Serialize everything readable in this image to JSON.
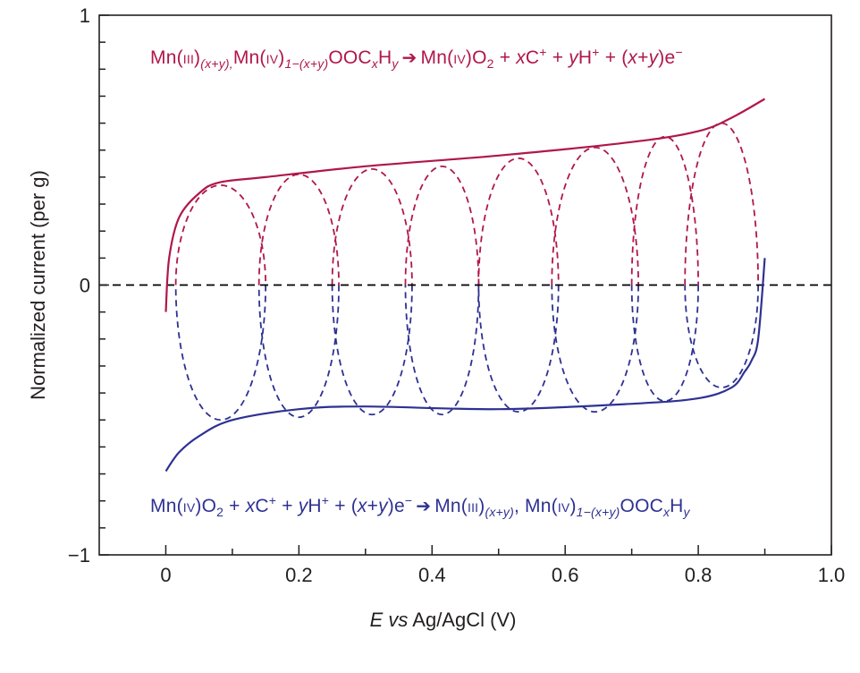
{
  "chart_data": {
    "type": "line",
    "xlabel_italic": "E",
    "xlabel_vs": "vs",
    "xlabel_rest": "Ag/AgCl (V)",
    "ylabel": "Normalized current (per g)",
    "xlim": [
      -0.1,
      1.0
    ],
    "ylim": [
      -1,
      1
    ],
    "x_ticks": [
      "0",
      "0.2",
      "0.4",
      "0.6",
      "0.8",
      "1.0"
    ],
    "x_tick_values": [
      0,
      0.2,
      0.4,
      0.6,
      0.8,
      1.0
    ],
    "y_ticks": [
      "1",
      "0",
      "−1"
    ],
    "y_tick_values": [
      1,
      0,
      -1
    ],
    "zero_line": true,
    "colors": {
      "anodic": "#b0174a",
      "cathodic": "#2e3192",
      "axis": "#231f20"
    },
    "series": [
      {
        "branch": "anodic",
        "x": [
          0.0,
          0.005,
          0.02,
          0.05,
          0.08,
          0.15,
          0.3,
          0.5,
          0.7,
          0.8,
          0.85,
          0.9
        ],
        "y": [
          -0.1,
          0.1,
          0.25,
          0.34,
          0.38,
          0.4,
          0.44,
          0.48,
          0.53,
          0.57,
          0.62,
          0.69
        ]
      },
      {
        "branch": "cathodic",
        "x": [
          0.9,
          0.89,
          0.88,
          0.87,
          0.85,
          0.8,
          0.7,
          0.5,
          0.3,
          0.2,
          0.1,
          0.05,
          0.02,
          0.0
        ],
        "y": [
          0.1,
          -0.2,
          -0.28,
          -0.32,
          -0.38,
          -0.42,
          -0.44,
          -0.46,
          -0.45,
          -0.46,
          -0.5,
          -0.56,
          -0.62,
          -0.69
        ]
      }
    ],
    "dashed_loops": [
      {
        "x_min": 0.015,
        "x_max": 0.15,
        "y_max": 0.37,
        "y_min": -0.5
      },
      {
        "x_min": 0.14,
        "x_max": 0.26,
        "y_max": 0.41,
        "y_min": -0.49
      },
      {
        "x_min": 0.25,
        "x_max": 0.37,
        "y_max": 0.43,
        "y_min": -0.48
      },
      {
        "x_min": 0.36,
        "x_max": 0.47,
        "y_max": 0.44,
        "y_min": -0.48
      },
      {
        "x_min": 0.47,
        "x_max": 0.59,
        "y_max": 0.47,
        "y_min": -0.47
      },
      {
        "x_min": 0.58,
        "x_max": 0.71,
        "y_max": 0.51,
        "y_min": -0.47
      },
      {
        "x_min": 0.7,
        "x_max": 0.8,
        "y_max": 0.55,
        "y_min": -0.43
      },
      {
        "x_min": 0.78,
        "x_max": 0.89,
        "y_max": 0.6,
        "y_min": -0.38
      }
    ]
  },
  "equations": {
    "oxidation": {
      "mn1": "Mn(",
      "ox1": "III",
      "close1": ")",
      "sub1": "(x+y),",
      "mn2": "Mn(",
      "ox2": "IV",
      "close2": ")",
      "sub2": "1−(x+y)",
      "ooc": "OOC",
      "subx": "x",
      "h": "H",
      "suby": "y",
      "arrow": "➔",
      "mn3": "Mn(",
      "ox3": "IV",
      "close3": ")O",
      "sub3": "2",
      "rest1": " + ",
      "xc": "x",
      "c": "C",
      "sup_plus1": "+",
      "rest2": " + ",
      "yh": "y",
      "h2": "H",
      "sup_plus2": "+",
      "rest3": " + (",
      "ex": "x",
      "plus": "+",
      "ey": "y",
      "rest4": ")e",
      "sup_minus": "−"
    },
    "reduction": {
      "mn1": "Mn(",
      "ox1": "IV",
      "close1": ")O",
      "sub1": "2",
      "rest1": " + ",
      "xc": "x",
      "c": "C",
      "sup_plus1": "+",
      "rest2": " + ",
      "yh": "y",
      "h2": "H",
      "sup_plus2": "+",
      "rest3": " + (",
      "ex": "x",
      "plus": "+",
      "ey": "y",
      "rest4": ")e",
      "sup_minus": "−",
      "arrow": "➔",
      "mn2": "Mn(",
      "ox2": "III",
      "close2": ")",
      "sub2": "(x+y)",
      "sep": ", ",
      "mn3": "Mn(",
      "ox3": "IV",
      "close3": ")",
      "sub3": "1−(x+y)",
      "ooc": "OOC",
      "subx": "x",
      "h": "H",
      "suby": "y"
    }
  }
}
